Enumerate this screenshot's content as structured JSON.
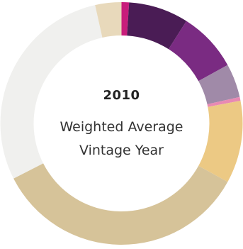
{
  "chart_data": {
    "type": "pie",
    "donut": true,
    "center_value": "2010",
    "center_label_lines": [
      "Weighted Average",
      "Vintage Year"
    ],
    "slices": [
      {
        "value": 1.0,
        "color": "#c81d7b"
      },
      {
        "value": 8.0,
        "color": "#4a1c55"
      },
      {
        "value": 8.0,
        "color": "#7a2b82"
      },
      {
        "value": 4.5,
        "color": "#a08aa8"
      },
      {
        "value": 0.5,
        "color": "#e889b3"
      },
      {
        "value": 11.0,
        "color": "#ecc984"
      },
      {
        "value": 34.5,
        "color": "#d6c399"
      },
      {
        "value": 29.0,
        "color": "#f0f0ee"
      },
      {
        "value": 3.5,
        "color": "#e8d9bb"
      }
    ]
  }
}
